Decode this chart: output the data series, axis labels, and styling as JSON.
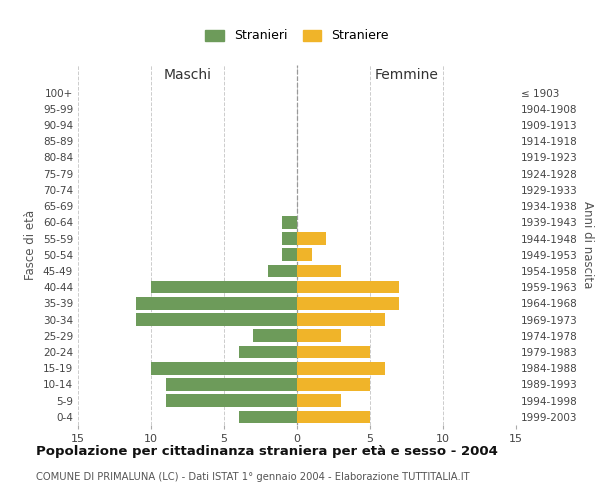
{
  "age_groups_bottom_to_top": [
    "0-4",
    "5-9",
    "10-14",
    "15-19",
    "20-24",
    "25-29",
    "30-34",
    "35-39",
    "40-44",
    "45-49",
    "50-54",
    "55-59",
    "60-64",
    "65-69",
    "70-74",
    "75-79",
    "80-84",
    "85-89",
    "90-94",
    "95-99",
    "100+"
  ],
  "birth_years_bottom_to_top": [
    "1999-2003",
    "1994-1998",
    "1989-1993",
    "1984-1988",
    "1979-1983",
    "1974-1978",
    "1969-1973",
    "1964-1968",
    "1959-1963",
    "1954-1958",
    "1949-1953",
    "1944-1948",
    "1939-1943",
    "1934-1938",
    "1929-1933",
    "1924-1928",
    "1919-1923",
    "1914-1918",
    "1909-1913",
    "1904-1908",
    "≤ 1903"
  ],
  "males_bottom_to_top": [
    4,
    9,
    9,
    10,
    4,
    3,
    11,
    11,
    10,
    2,
    1,
    1,
    1,
    0,
    0,
    0,
    0,
    0,
    0,
    0,
    0
  ],
  "females_bottom_to_top": [
    5,
    3,
    5,
    6,
    5,
    3,
    6,
    7,
    7,
    3,
    1,
    2,
    0,
    0,
    0,
    0,
    0,
    0,
    0,
    0,
    0
  ],
  "male_color": "#6d9b5a",
  "female_color": "#f0b429",
  "title": "Popolazione per cittadinanza straniera per età e sesso - 2004",
  "subtitle": "COMUNE DI PRIMALUNA (LC) - Dati ISTAT 1° gennaio 2004 - Elaborazione TUTTITALIA.IT",
  "header_left": "Maschi",
  "header_right": "Femmine",
  "ylabel_left": "Fasce di età",
  "ylabel_right": "Anni di nascita",
  "legend_male": "Stranieri",
  "legend_female": "Straniere",
  "xlim": 15,
  "background_color": "#ffffff",
  "grid_color": "#cccccc"
}
